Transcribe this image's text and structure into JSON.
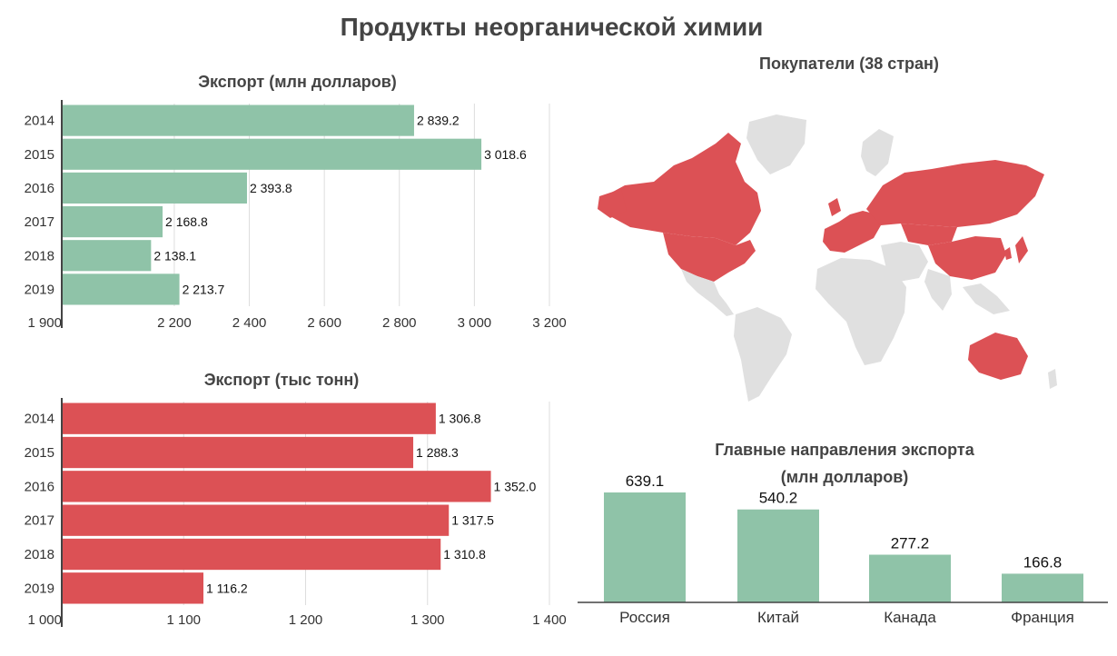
{
  "title": "Продукты неорганической химии",
  "colors": {
    "green": "#8fc3a8",
    "red": "#dc5155",
    "land": "#e0e0e0",
    "grid": "#dddddd",
    "axis": "#444444"
  },
  "map": {
    "title": "Покупатели (38 стран)"
  },
  "chart_data": [
    {
      "id": "export-usd",
      "type": "bar",
      "orientation": "horizontal",
      "title": "Экспорт (млн долларов)",
      "categories": [
        "2014",
        "2015",
        "2016",
        "2017",
        "2018",
        "2019"
      ],
      "values": [
        2839.2,
        3018.6,
        2393.8,
        2168.8,
        2138.1,
        2213.7
      ],
      "value_labels": [
        "2 839.2",
        "3 018.6",
        "2 393.8",
        "2 168.8",
        "2 138.1",
        "2 213.7"
      ],
      "xlim": [
        1900,
        3200
      ],
      "ticks": [
        1900,
        2200,
        2400,
        2600,
        2800,
        3000,
        3200
      ],
      "tick_labels": [
        "1 900",
        "2 200",
        "2 400",
        "2 600",
        "2 800",
        "3 000",
        "3 200"
      ],
      "color": "#8fc3a8",
      "grid": true
    },
    {
      "id": "export-tons",
      "type": "bar",
      "orientation": "horizontal",
      "title": "Экспорт (тыс тонн)",
      "categories": [
        "2014",
        "2015",
        "2016",
        "2017",
        "2018",
        "2019"
      ],
      "values": [
        1306.8,
        1288.3,
        1352.0,
        1317.5,
        1310.8,
        1116.2
      ],
      "value_labels": [
        "1 306.8",
        "1 288.3",
        "1 352.0",
        "1 317.5",
        "1 310.8",
        "1 116.2"
      ],
      "xlim": [
        1000,
        1400
      ],
      "ticks": [
        1000,
        1100,
        1200,
        1300,
        1400
      ],
      "tick_labels": [
        "1 000",
        "1 100",
        "1 200",
        "1 300",
        "1 400"
      ],
      "color": "#dc5155",
      "grid": true
    },
    {
      "id": "top-destinations",
      "type": "bar",
      "orientation": "vertical",
      "title": "Главные направления экспорта",
      "subtitle": "(млн долларов)",
      "categories": [
        "Россия",
        "Китай",
        "Канада",
        "Франция"
      ],
      "values": [
        639.1,
        540.2,
        277.2,
        166.8
      ],
      "value_labels": [
        "639.1",
        "540.2",
        "277.2",
        "166.8"
      ],
      "ylim": [
        0,
        639.1
      ],
      "color": "#8fc3a8",
      "grid": false
    }
  ]
}
